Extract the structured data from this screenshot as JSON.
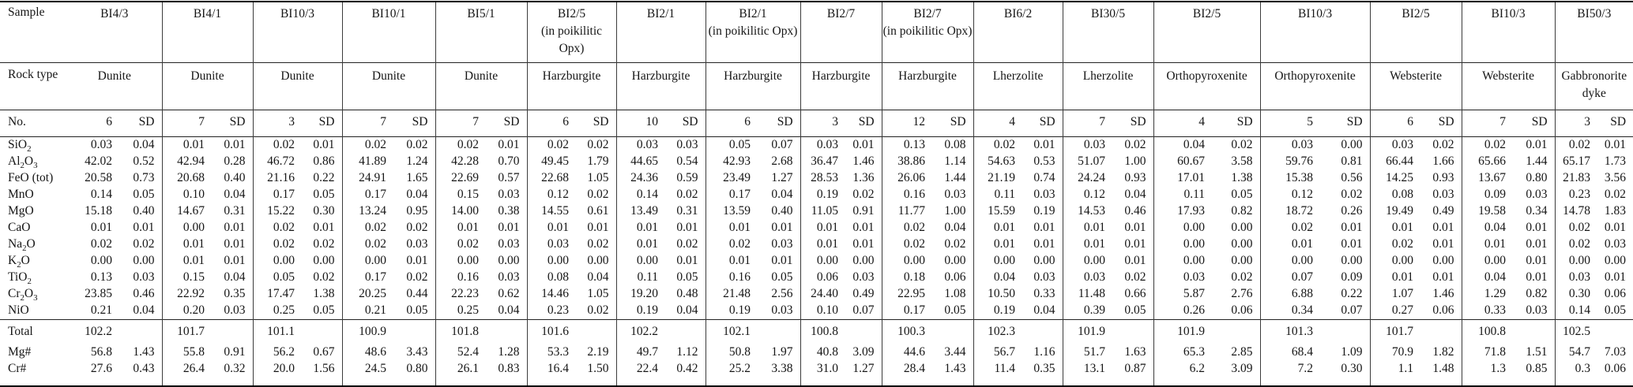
{
  "colors": {
    "background": "#ffffff",
    "text": "#161616",
    "rule": "#000000"
  },
  "table": {
    "header": {
      "sample_label": "Sample",
      "rock_type_label": "Rock type",
      "no_label": "No.",
      "sd_label": "SD"
    },
    "samples": [
      {
        "name": "BI4/3",
        "note": "",
        "rock_type": "Dunite",
        "n": "6"
      },
      {
        "name": "BI4/1",
        "note": "",
        "rock_type": "Dunite",
        "n": "7"
      },
      {
        "name": "BI10/3",
        "note": "",
        "rock_type": "Dunite",
        "n": "3"
      },
      {
        "name": "BI10/1",
        "note": "",
        "rock_type": "Dunite",
        "n": "7"
      },
      {
        "name": "BI5/1",
        "note": "",
        "rock_type": "Dunite",
        "n": "7"
      },
      {
        "name": "BI2/5",
        "note": "(in poikilitic Opx)",
        "rock_type": "Harzburgite",
        "n": "6"
      },
      {
        "name": "BI2/1",
        "note": "",
        "rock_type": "Harzburgite",
        "n": "10"
      },
      {
        "name": "BI2/1",
        "note": "(in poikilitic Opx)",
        "rock_type": "Harzburgite",
        "n": "6"
      },
      {
        "name": "BI2/7",
        "note": "",
        "rock_type": "Harzburgite",
        "n": "3"
      },
      {
        "name": "BI2/7",
        "note": "(in poikilitic Opx)",
        "rock_type": "Harzburgite",
        "n": "12"
      },
      {
        "name": "BI6/2",
        "note": "",
        "rock_type": "Lherzolite",
        "n": "4"
      },
      {
        "name": "BI30/5",
        "note": "",
        "rock_type": "Lherzolite",
        "n": "7"
      },
      {
        "name": "BI2/5",
        "note": "",
        "rock_type": "Orthopyroxenite",
        "n": "4"
      },
      {
        "name": "BI10/3",
        "note": "",
        "rock_type": "Orthopyroxenite",
        "n": "5"
      },
      {
        "name": "BI2/5",
        "note": "",
        "rock_type": "Websterite",
        "n": "6"
      },
      {
        "name": "BI10/3",
        "note": "",
        "rock_type": "Websterite",
        "n": "7"
      },
      {
        "name": "BI50/3",
        "note": "",
        "rock_type": "Gabbronorite dyke",
        "n": "3"
      }
    ],
    "oxide_rows": [
      {
        "formula": "SiO2",
        "cells": [
          [
            "0.03",
            "0.04"
          ],
          [
            "0.01",
            "0.01"
          ],
          [
            "0.02",
            "0.01"
          ],
          [
            "0.02",
            "0.02"
          ],
          [
            "0.02",
            "0.01"
          ],
          [
            "0.02",
            "0.02"
          ],
          [
            "0.03",
            "0.03"
          ],
          [
            "0.05",
            "0.07"
          ],
          [
            "0.03",
            "0.01"
          ],
          [
            "0.13",
            "0.08"
          ],
          [
            "0.02",
            "0.01"
          ],
          [
            "0.03",
            "0.02"
          ],
          [
            "0.04",
            "0.02"
          ],
          [
            "0.03",
            "0.00"
          ],
          [
            "0.03",
            "0.02"
          ],
          [
            "0.02",
            "0.01"
          ],
          [
            "0.02",
            "0.01"
          ]
        ]
      },
      {
        "formula": "Al2O3",
        "cells": [
          [
            "42.02",
            "0.52"
          ],
          [
            "42.94",
            "0.28"
          ],
          [
            "46.72",
            "0.86"
          ],
          [
            "41.89",
            "1.24"
          ],
          [
            "42.28",
            "0.70"
          ],
          [
            "49.45",
            "1.79"
          ],
          [
            "44.65",
            "0.54"
          ],
          [
            "42.93",
            "2.68"
          ],
          [
            "36.47",
            "1.46"
          ],
          [
            "38.86",
            "1.14"
          ],
          [
            "54.63",
            "0.53"
          ],
          [
            "51.07",
            "1.00"
          ],
          [
            "60.67",
            "3.58"
          ],
          [
            "59.76",
            "0.81"
          ],
          [
            "66.44",
            "1.66"
          ],
          [
            "65.66",
            "1.44"
          ],
          [
            "65.17",
            "1.73"
          ]
        ]
      },
      {
        "formula": "FeO (tot)",
        "cells": [
          [
            "20.58",
            "0.73"
          ],
          [
            "20.68",
            "0.40"
          ],
          [
            "21.16",
            "0.22"
          ],
          [
            "24.91",
            "1.65"
          ],
          [
            "22.69",
            "0.57"
          ],
          [
            "22.68",
            "1.05"
          ],
          [
            "24.36",
            "0.59"
          ],
          [
            "23.49",
            "1.27"
          ],
          [
            "28.53",
            "1.36"
          ],
          [
            "26.06",
            "1.44"
          ],
          [
            "21.19",
            "0.74"
          ],
          [
            "24.24",
            "0.93"
          ],
          [
            "17.01",
            "1.38"
          ],
          [
            "15.38",
            "0.56"
          ],
          [
            "14.25",
            "0.93"
          ],
          [
            "13.67",
            "0.80"
          ],
          [
            "21.83",
            "3.56"
          ]
        ]
      },
      {
        "formula": "MnO",
        "cells": [
          [
            "0.14",
            "0.05"
          ],
          [
            "0.10",
            "0.04"
          ],
          [
            "0.17",
            "0.05"
          ],
          [
            "0.17",
            "0.04"
          ],
          [
            "0.15",
            "0.03"
          ],
          [
            "0.12",
            "0.02"
          ],
          [
            "0.14",
            "0.02"
          ],
          [
            "0.17",
            "0.04"
          ],
          [
            "0.19",
            "0.02"
          ],
          [
            "0.16",
            "0.03"
          ],
          [
            "0.11",
            "0.03"
          ],
          [
            "0.12",
            "0.04"
          ],
          [
            "0.11",
            "0.05"
          ],
          [
            "0.12",
            "0.02"
          ],
          [
            "0.08",
            "0.03"
          ],
          [
            "0.09",
            "0.03"
          ],
          [
            "0.23",
            "0.02"
          ]
        ]
      },
      {
        "formula": "MgO",
        "cells": [
          [
            "15.18",
            "0.40"
          ],
          [
            "14.67",
            "0.31"
          ],
          [
            "15.22",
            "0.30"
          ],
          [
            "13.24",
            "0.95"
          ],
          [
            "14.00",
            "0.38"
          ],
          [
            "14.55",
            "0.61"
          ],
          [
            "13.49",
            "0.31"
          ],
          [
            "13.59",
            "0.40"
          ],
          [
            "11.05",
            "0.91"
          ],
          [
            "11.77",
            "1.00"
          ],
          [
            "15.59",
            "0.19"
          ],
          [
            "14.53",
            "0.46"
          ],
          [
            "17.93",
            "0.82"
          ],
          [
            "18.72",
            "0.26"
          ],
          [
            "19.49",
            "0.49"
          ],
          [
            "19.58",
            "0.34"
          ],
          [
            "14.78",
            "1.83"
          ]
        ]
      },
      {
        "formula": "CaO",
        "cells": [
          [
            "0.01",
            "0.01"
          ],
          [
            "0.00",
            "0.01"
          ],
          [
            "0.02",
            "0.01"
          ],
          [
            "0.02",
            "0.02"
          ],
          [
            "0.01",
            "0.01"
          ],
          [
            "0.01",
            "0.01"
          ],
          [
            "0.01",
            "0.01"
          ],
          [
            "0.01",
            "0.01"
          ],
          [
            "0.01",
            "0.01"
          ],
          [
            "0.02",
            "0.04"
          ],
          [
            "0.01",
            "0.01"
          ],
          [
            "0.01",
            "0.01"
          ],
          [
            "0.00",
            "0.00"
          ],
          [
            "0.02",
            "0.01"
          ],
          [
            "0.01",
            "0.01"
          ],
          [
            "0.04",
            "0.01"
          ],
          [
            "0.02",
            "0.01"
          ]
        ]
      },
      {
        "formula": "Na2O",
        "cells": [
          [
            "0.02",
            "0.02"
          ],
          [
            "0.01",
            "0.01"
          ],
          [
            "0.02",
            "0.02"
          ],
          [
            "0.02",
            "0.03"
          ],
          [
            "0.02",
            "0.03"
          ],
          [
            "0.03",
            "0.02"
          ],
          [
            "0.01",
            "0.02"
          ],
          [
            "0.02",
            "0.03"
          ],
          [
            "0.01",
            "0.01"
          ],
          [
            "0.02",
            "0.02"
          ],
          [
            "0.01",
            "0.01"
          ],
          [
            "0.01",
            "0.01"
          ],
          [
            "0.00",
            "0.00"
          ],
          [
            "0.01",
            "0.01"
          ],
          [
            "0.02",
            "0.01"
          ],
          [
            "0.01",
            "0.01"
          ],
          [
            "0.02",
            "0.03"
          ]
        ]
      },
      {
        "formula": "K2O",
        "cells": [
          [
            "0.00",
            "0.00"
          ],
          [
            "0.01",
            "0.01"
          ],
          [
            "0.00",
            "0.00"
          ],
          [
            "0.00",
            "0.01"
          ],
          [
            "0.00",
            "0.00"
          ],
          [
            "0.00",
            "0.00"
          ],
          [
            "0.00",
            "0.01"
          ],
          [
            "0.01",
            "0.01"
          ],
          [
            "0.00",
            "0.00"
          ],
          [
            "0.00",
            "0.00"
          ],
          [
            "0.00",
            "0.00"
          ],
          [
            "0.00",
            "0.01"
          ],
          [
            "0.00",
            "0.00"
          ],
          [
            "0.00",
            "0.00"
          ],
          [
            "0.00",
            "0.00"
          ],
          [
            "0.00",
            "0.01"
          ],
          [
            "0.00",
            "0.00"
          ]
        ]
      },
      {
        "formula": "TiO2",
        "cells": [
          [
            "0.13",
            "0.03"
          ],
          [
            "0.15",
            "0.04"
          ],
          [
            "0.05",
            "0.02"
          ],
          [
            "0.17",
            "0.02"
          ],
          [
            "0.16",
            "0.03"
          ],
          [
            "0.08",
            "0.04"
          ],
          [
            "0.11",
            "0.05"
          ],
          [
            "0.16",
            "0.05"
          ],
          [
            "0.06",
            "0.03"
          ],
          [
            "0.18",
            "0.06"
          ],
          [
            "0.04",
            "0.03"
          ],
          [
            "0.03",
            "0.02"
          ],
          [
            "0.03",
            "0.02"
          ],
          [
            "0.07",
            "0.09"
          ],
          [
            "0.01",
            "0.01"
          ],
          [
            "0.04",
            "0.01"
          ],
          [
            "0.03",
            "0.01"
          ]
        ]
      },
      {
        "formula": "Cr2O3",
        "cells": [
          [
            "23.85",
            "0.46"
          ],
          [
            "22.92",
            "0.35"
          ],
          [
            "17.47",
            "1.38"
          ],
          [
            "20.25",
            "0.44"
          ],
          [
            "22.23",
            "0.62"
          ],
          [
            "14.46",
            "1.05"
          ],
          [
            "19.20",
            "0.48"
          ],
          [
            "21.48",
            "2.56"
          ],
          [
            "24.40",
            "0.49"
          ],
          [
            "22.95",
            "1.08"
          ],
          [
            "10.50",
            "0.33"
          ],
          [
            "11.48",
            "0.66"
          ],
          [
            "5.87",
            "2.76"
          ],
          [
            "6.88",
            "0.22"
          ],
          [
            "1.07",
            "1.46"
          ],
          [
            "1.29",
            "0.82"
          ],
          [
            "0.30",
            "0.06"
          ]
        ]
      },
      {
        "formula": "NiO",
        "cells": [
          [
            "0.21",
            "0.04"
          ],
          [
            "0.20",
            "0.03"
          ],
          [
            "0.25",
            "0.05"
          ],
          [
            "0.21",
            "0.05"
          ],
          [
            "0.25",
            "0.04"
          ],
          [
            "0.23",
            "0.02"
          ],
          [
            "0.19",
            "0.04"
          ],
          [
            "0.19",
            "0.03"
          ],
          [
            "0.10",
            "0.07"
          ],
          [
            "0.17",
            "0.05"
          ],
          [
            "0.19",
            "0.04"
          ],
          [
            "0.39",
            "0.05"
          ],
          [
            "0.26",
            "0.06"
          ],
          [
            "0.34",
            "0.07"
          ],
          [
            "0.27",
            "0.06"
          ],
          [
            "0.33",
            "0.03"
          ],
          [
            "0.14",
            "0.05"
          ]
        ]
      }
    ],
    "summary_rows": [
      {
        "label": "Total",
        "cells": [
          [
            "102.2",
            ""
          ],
          [
            "101.7",
            ""
          ],
          [
            "101.1",
            ""
          ],
          [
            "100.9",
            ""
          ],
          [
            "101.8",
            ""
          ],
          [
            "101.6",
            ""
          ],
          [
            "102.2",
            ""
          ],
          [
            "102.1",
            ""
          ],
          [
            "100.8",
            ""
          ],
          [
            "100.3",
            ""
          ],
          [
            "102.3",
            ""
          ],
          [
            "101.9",
            ""
          ],
          [
            "101.9",
            ""
          ],
          [
            "101.3",
            ""
          ],
          [
            "101.7",
            ""
          ],
          [
            "100.8",
            ""
          ],
          [
            "102.5",
            ""
          ]
        ]
      },
      {
        "label": "Mg#",
        "cells": [
          [
            "56.8",
            "1.43"
          ],
          [
            "55.8",
            "0.91"
          ],
          [
            "56.2",
            "0.67"
          ],
          [
            "48.6",
            "3.43"
          ],
          [
            "52.4",
            "1.28"
          ],
          [
            "53.3",
            "2.19"
          ],
          [
            "49.7",
            "1.12"
          ],
          [
            "50.8",
            "1.97"
          ],
          [
            "40.8",
            "3.09"
          ],
          [
            "44.6",
            "3.44"
          ],
          [
            "56.7",
            "1.16"
          ],
          [
            "51.7",
            "1.63"
          ],
          [
            "65.3",
            "2.85"
          ],
          [
            "68.4",
            "1.09"
          ],
          [
            "70.9",
            "1.82"
          ],
          [
            "71.8",
            "1.51"
          ],
          [
            "54.7",
            "7.03"
          ]
        ]
      },
      {
        "label": "Cr#",
        "cells": [
          [
            "27.6",
            "0.43"
          ],
          [
            "26.4",
            "0.32"
          ],
          [
            "20.0",
            "1.56"
          ],
          [
            "24.5",
            "0.80"
          ],
          [
            "26.1",
            "0.83"
          ],
          [
            "16.4",
            "1.50"
          ],
          [
            "22.4",
            "0.42"
          ],
          [
            "25.2",
            "3.38"
          ],
          [
            "31.0",
            "1.27"
          ],
          [
            "28.4",
            "1.43"
          ],
          [
            "11.4",
            "0.35"
          ],
          [
            "13.1",
            "0.87"
          ],
          [
            "6.2",
            "3.09"
          ],
          [
            "7.2",
            "0.30"
          ],
          [
            "1.1",
            "1.48"
          ],
          [
            "1.3",
            "0.85"
          ],
          [
            "0.3",
            "0.06"
          ]
        ]
      }
    ]
  }
}
